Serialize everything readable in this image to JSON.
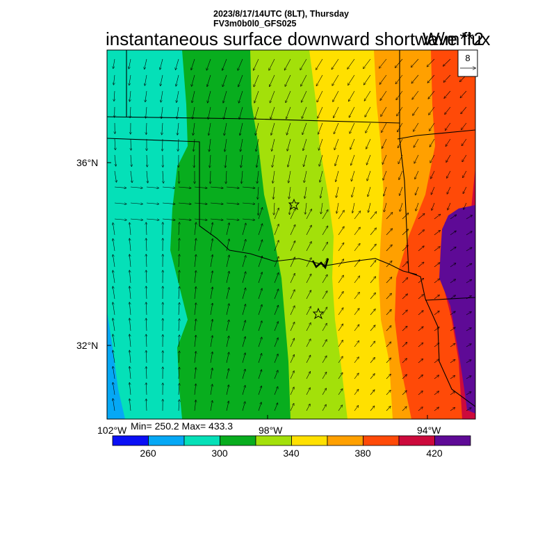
{
  "header": {
    "datetime": "2023/8/17/14UTC (8LT), Thursday",
    "model": "FV3m0b0l0_GFS025",
    "title": "instantaneous surface downward shortwave flux",
    "units": "W/m**2"
  },
  "reference_vector": {
    "label": "8"
  },
  "axes": {
    "lat_labels": [
      "36°N",
      "32°N"
    ],
    "lon_labels": [
      "102°W",
      "98°W",
      "94°W"
    ]
  },
  "stats": {
    "text": "Min= 250.2 Max= 433.3",
    "min": 250.2,
    "max": 433.3
  },
  "colorbar": {
    "colors": [
      "#0a0ff5",
      "#05a8f5",
      "#05e0b8",
      "#08ad1e",
      "#a3e00a",
      "#ffe000",
      "#ffa000",
      "#ff4a08",
      "#cc0a3c",
      "#5e0a96"
    ],
    "labels": [
      "260",
      "300",
      "340",
      "380",
      "420"
    ],
    "bounds": [
      240,
      260,
      280,
      300,
      320,
      340,
      360,
      380,
      400,
      420,
      440
    ]
  },
  "markers": {
    "stars": 2,
    "symbol": "star"
  }
}
